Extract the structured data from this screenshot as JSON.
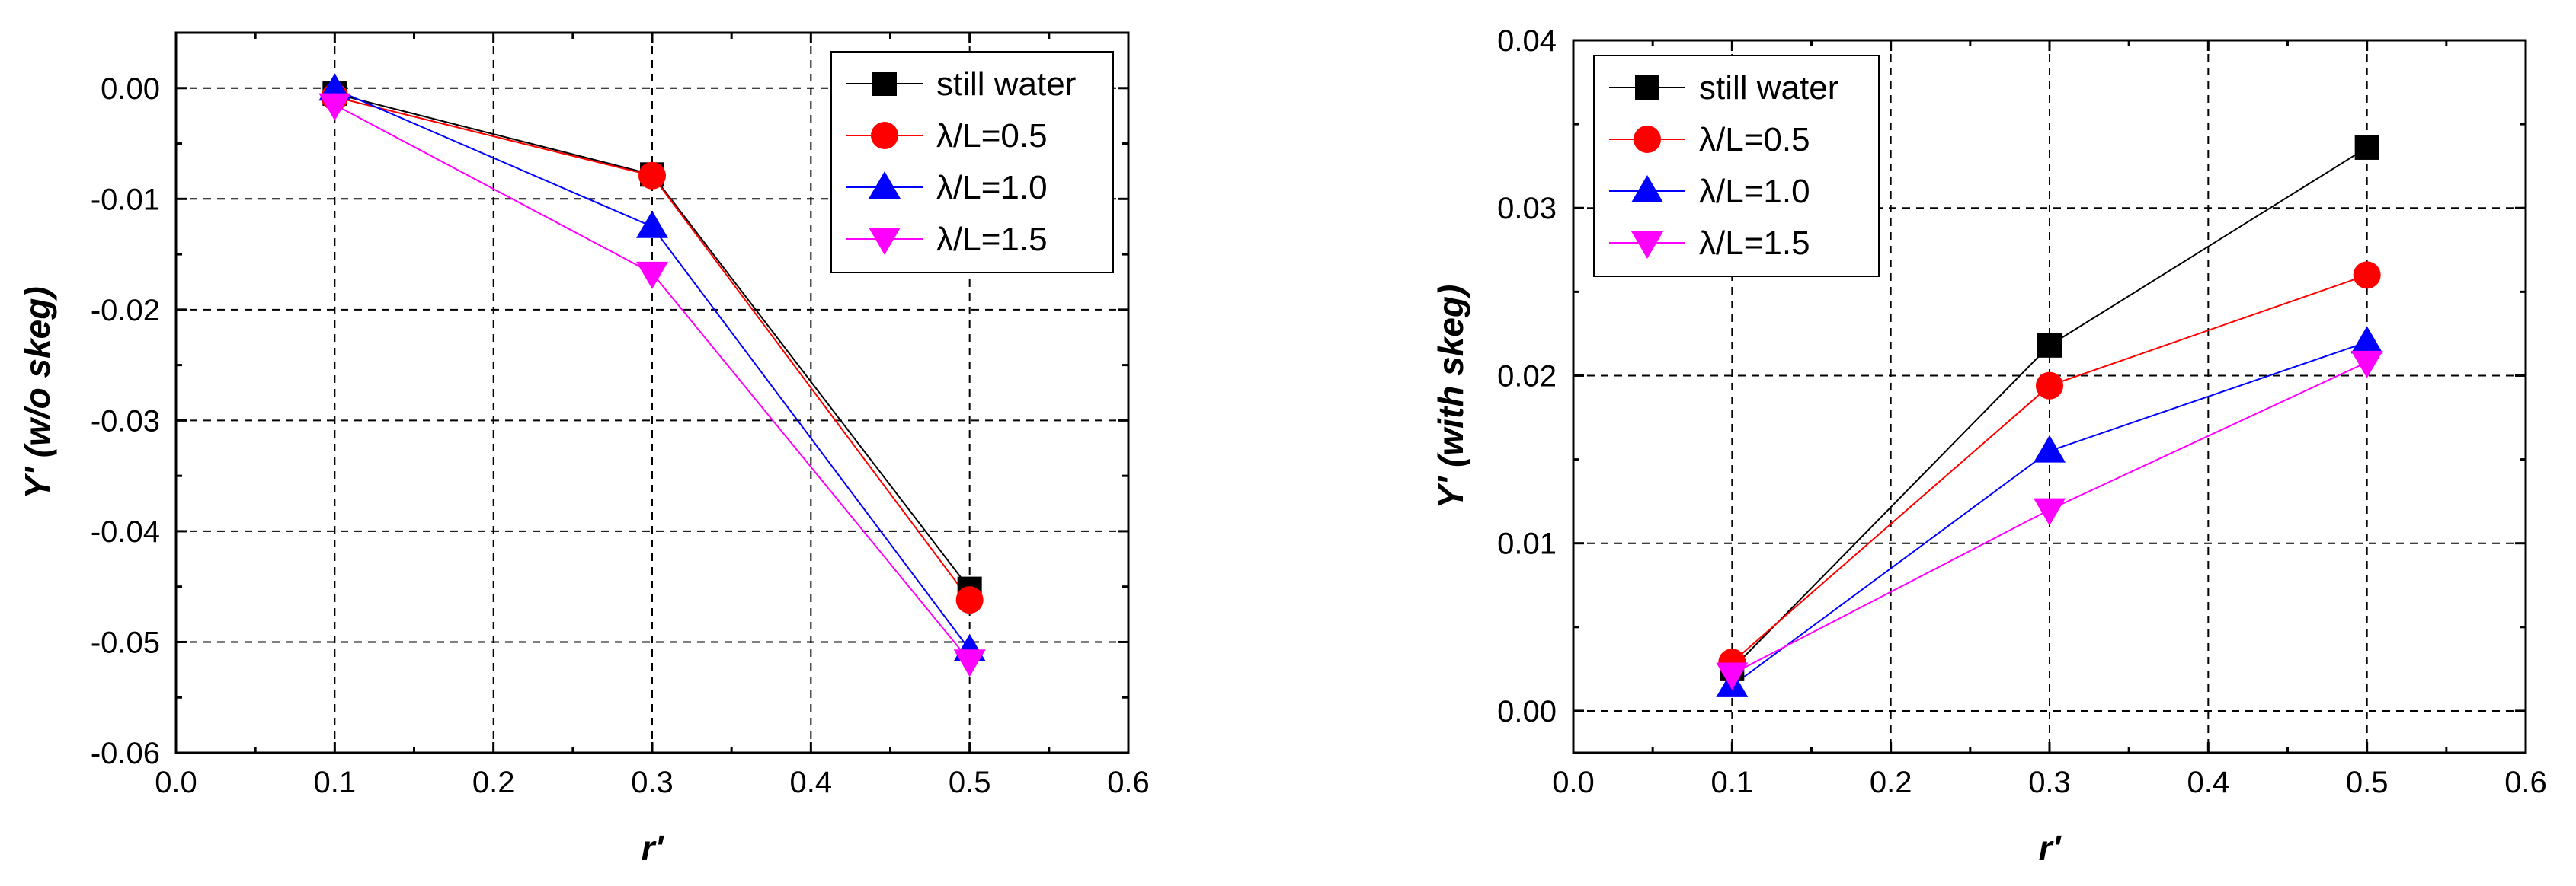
{
  "chart_data": [
    {
      "type": "line",
      "xlabel": "r'",
      "ylabel": "Y' (w/o skeg)",
      "xlim": [
        0.0,
        0.6
      ],
      "ylim": [
        -0.06,
        0.005
      ],
      "x_ticks": [
        0.0,
        0.1,
        0.2,
        0.3,
        0.4,
        0.5,
        0.6
      ],
      "x_tick_labels": [
        "0.0",
        "0.1",
        "0.2",
        "0.3",
        "0.4",
        "0.5",
        "0.6"
      ],
      "y_ticks": [
        0.0,
        -0.01,
        -0.02,
        -0.03,
        -0.04,
        -0.05,
        -0.06
      ],
      "y_tick_labels": [
        "0.00",
        "-0.01",
        "-0.02",
        "-0.03",
        "-0.04",
        "-0.05",
        "-0.06"
      ],
      "grid": true,
      "legend_position": "top-right",
      "x": [
        0.1,
        0.3,
        0.5
      ],
      "series": [
        {
          "name": "still water",
          "color": "#000000",
          "marker": "square",
          "values": [
            -0.0005,
            -0.0078,
            -0.0452
          ]
        },
        {
          "name": "λ/L=0.5",
          "color": "#ff0000",
          "marker": "circle",
          "values": [
            -0.0008,
            -0.0079,
            -0.0462
          ]
        },
        {
          "name": "λ/L=1.0",
          "color": "#0000ff",
          "marker": "triangle-up",
          "values": [
            -0.0001,
            -0.0125,
            -0.0507
          ]
        },
        {
          "name": "λ/L=1.5",
          "color": "#ff00ff",
          "marker": "triangle-down",
          "values": [
            -0.0015,
            -0.0167,
            -0.0517
          ]
        }
      ]
    },
    {
      "type": "line",
      "xlabel": "r'",
      "ylabel": "Y' (with skeg)",
      "xlim": [
        0.0,
        0.6
      ],
      "ylim": [
        -0.0025,
        0.04
      ],
      "x_ticks": [
        0.0,
        0.1,
        0.2,
        0.3,
        0.4,
        0.5,
        0.6
      ],
      "x_tick_labels": [
        "0.0",
        "0.1",
        "0.2",
        "0.3",
        "0.4",
        "0.5",
        "0.6"
      ],
      "y_ticks": [
        0.0,
        0.01,
        0.02,
        0.03,
        0.04
      ],
      "y_tick_labels": [
        "0.00",
        "0.01",
        "0.02",
        "0.03",
        "0.04"
      ],
      "grid": true,
      "legend_position": "top-left",
      "x": [
        0.1,
        0.3,
        0.5
      ],
      "series": [
        {
          "name": "still water",
          "color": "#000000",
          "marker": "square",
          "values": [
            0.0025,
            0.0218,
            0.0336
          ]
        },
        {
          "name": "λ/L=0.5",
          "color": "#ff0000",
          "marker": "circle",
          "values": [
            0.0029,
            0.0194,
            0.026
          ]
        },
        {
          "name": "λ/L=1.0",
          "color": "#0000ff",
          "marker": "triangle-up",
          "values": [
            0.0015,
            0.0155,
            0.022
          ]
        },
        {
          "name": "λ/L=1.5",
          "color": "#ff00ff",
          "marker": "triangle-down",
          "values": [
            0.0022,
            0.012,
            0.0208
          ]
        }
      ]
    }
  ]
}
